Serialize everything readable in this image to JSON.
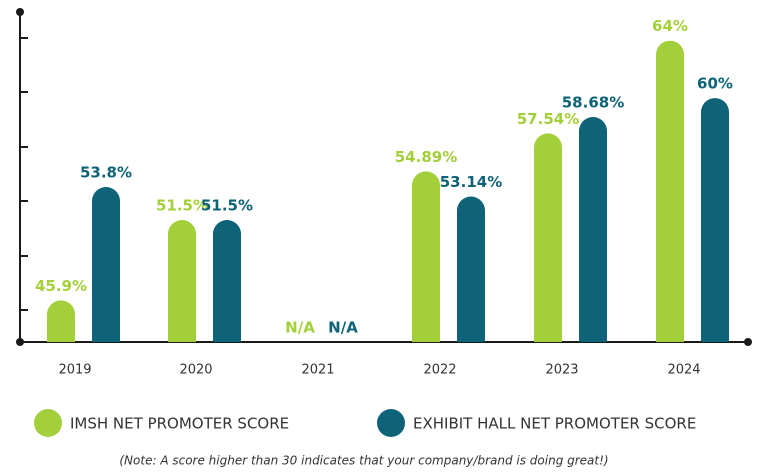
{
  "chart_data": {
    "type": "bar",
    "categories": [
      "2019",
      "2020",
      "2021",
      "2022",
      "2023",
      "2024"
    ],
    "series": [
      {
        "name": "IMSH NET PROMOTER SCORE",
        "color": "#a3cf3b",
        "values": [
          45.9,
          51.5,
          null,
          54.89,
          57.54,
          64
        ],
        "value_labels": [
          "45.9%",
          "51.5%",
          "N/A",
          "54.89%",
          "57.54%",
          "64%"
        ]
      },
      {
        "name": "EXHIBIT HALL NET PROMOTER SCORE",
        "color": "#0e6378",
        "values": [
          53.8,
          51.5,
          null,
          53.14,
          58.68,
          60
        ],
        "value_labels": [
          "53.8%",
          "51.5%",
          "N/A",
          "53.14%",
          "58.68%",
          "60%"
        ]
      }
    ],
    "ylim": [
      43,
      66
    ],
    "note": "(Note: A score higher than 30 indicates that your company/brand is doing great!)"
  }
}
